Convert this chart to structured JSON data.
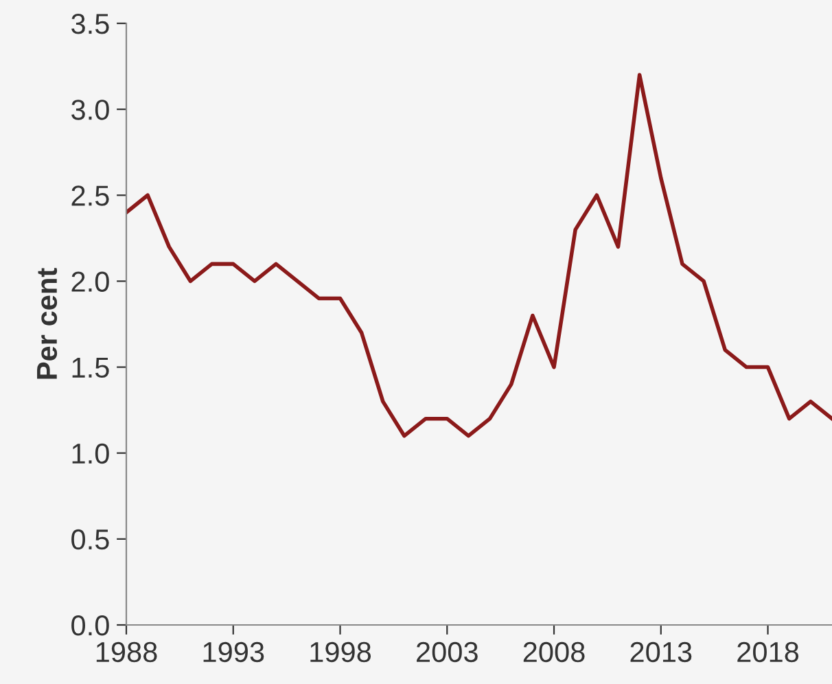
{
  "chart_data": {
    "type": "line",
    "ylabel": "Per cent",
    "x": [
      1988,
      1989,
      1990,
      1991,
      1992,
      1993,
      1994,
      1995,
      1996,
      1997,
      1998,
      1999,
      2000,
      2001,
      2002,
      2003,
      2004,
      2005,
      2006,
      2007,
      2008,
      2009,
      2010,
      2011,
      2012,
      2013,
      2014,
      2015,
      2016,
      2017,
      2018,
      2019,
      2020,
      2021
    ],
    "series": [
      {
        "color": "#8b1a1a",
        "values": [
          2.4,
          2.5,
          2.2,
          2.0,
          2.1,
          2.1,
          2.0,
          2.1,
          2.0,
          1.9,
          1.9,
          1.7,
          1.3,
          1.1,
          1.2,
          1.2,
          1.1,
          1.2,
          1.4,
          1.8,
          1.5,
          2.3,
          2.5,
          2.2,
          3.2,
          2.6,
          2.1,
          2.0,
          1.6,
          1.5,
          1.5,
          1.2,
          1.3,
          1.2
        ]
      }
    ],
    "xlim": [
      1988,
      2021
    ],
    "xticks": [
      1988,
      1993,
      1998,
      2003,
      2008,
      2013,
      2018
    ],
    "ylim": [
      0,
      3.5
    ],
    "yticks": [
      {
        "value": 0,
        "label": "0.0"
      },
      {
        "value": 0.5,
        "label": "0.5"
      },
      {
        "value": 1,
        "label": "1.0"
      },
      {
        "value": 1.5,
        "label": "1.5"
      },
      {
        "value": 2,
        "label": "2.0"
      },
      {
        "value": 2.5,
        "label": "2.5"
      },
      {
        "value": 3,
        "label": "3.0"
      },
      {
        "value": 3.5,
        "label": "3.5"
      }
    ],
    "grid": false,
    "legend": false,
    "marker": "none",
    "line_style": "solid"
  }
}
